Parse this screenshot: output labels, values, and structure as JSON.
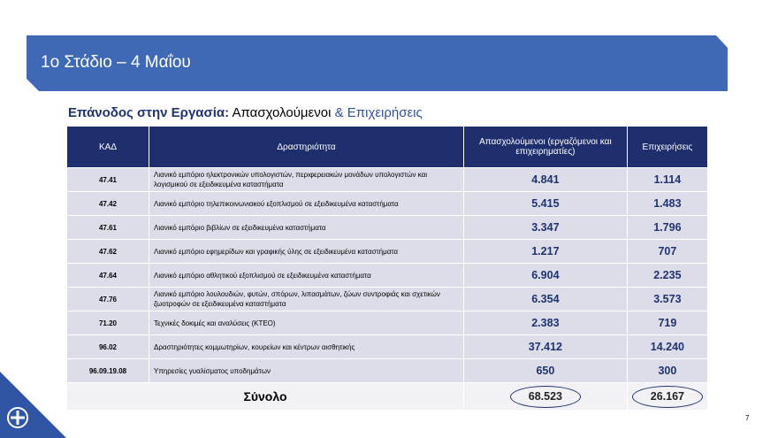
{
  "header": {
    "title": "1ο Στάδιο – 4 Μαΐου"
  },
  "subtitle": {
    "bold": "Επάνοδος στην Εργασία:",
    "part1": "Απασχολούμενοι",
    "part2": "& Επιχειρήσεις"
  },
  "table": {
    "columns": [
      "ΚΑΔ",
      "Δραστηριότητα",
      "Απασχολούμενοι (εργαζόμενοι και επιχειρηματίες)",
      "Επιχειρήσεις"
    ],
    "rows": [
      [
        "47.41",
        "Λιανικό εμπόριο ηλεκτρονικών υπολογιστών, περιφερειακών μονάδων υπολογιστών και λογισμικού σε εξειδικευμένα καταστήματα",
        "4.841",
        "1.114"
      ],
      [
        "47.42",
        "Λιανικό εμπόριο τηλεπικοινωνιακού εξοπλισμού σε εξειδικευμένα καταστήματα",
        "5.415",
        "1.483"
      ],
      [
        "47.61",
        "Λιανικό εμπόριο βιβλίων σε εξειδικευμένα καταστήματα",
        "3.347",
        "1.796"
      ],
      [
        "47.62",
        "Λιανικό εμπόριο εφημερίδων και γραφικής ύλης σε εξειδικευμένα καταστήματα",
        "1.217",
        "707"
      ],
      [
        "47.64",
        "Λιανικό εμπόριο αθλητικού εξοπλισμού σε εξειδικευμένα καταστήματα",
        "6.904",
        "2.235"
      ],
      [
        "47.76",
        "Λιανικό εμπόριο λουλουδιών, φυτών, σπόρων, λιπασμάτων, ζώων συντροφιάς και σχετικών ζωοτροφών σε εξειδικευμένα καταστήματα",
        "6.354",
        "3.573"
      ],
      [
        "71.20",
        "Τεχνικές δοκιμές και αναλύσεις (ΚΤΕΟ)",
        "2.383",
        "719"
      ],
      [
        "96.02",
        "Δραστηριότητες κομμωτηρίων, κουρείων και κέντρων αισθητικής",
        "37.412",
        "14.240"
      ],
      [
        "96.09.19.08",
        "Υπηρεσίες γυαλίσματος υποδημάτων",
        "650",
        "300"
      ]
    ],
    "total": {
      "label": "Σύνολο",
      "employed": "68.523",
      "businesses": "26.167"
    }
  },
  "page_number": "7"
}
